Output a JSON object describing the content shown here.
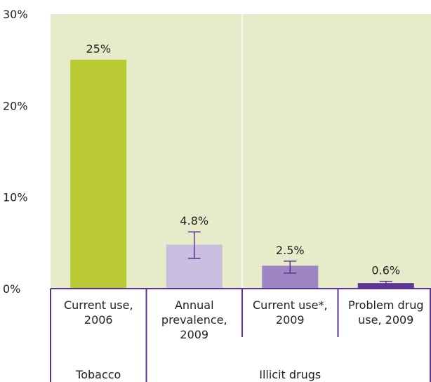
{
  "chart_data": {
    "type": "bar",
    "title": "",
    "xlabel": "",
    "ylabel": "",
    "ylim": [
      0,
      30
    ],
    "yticks": [
      "0%",
      "10%",
      "20%",
      "30%"
    ],
    "ytick_values": [
      0,
      10,
      20,
      30
    ],
    "grid": "vertical separator between groups",
    "categories": [
      [
        "Current use,",
        "2006"
      ],
      [
        "Annual",
        "prevalence,",
        "2009"
      ],
      [
        "Current use*,",
        "2009"
      ],
      [
        "Problem drug",
        "use, 2009"
      ]
    ],
    "values": [
      25,
      4.8,
      2.5,
      0.6
    ],
    "data_labels": [
      "25%",
      "4.8%",
      "2.5%",
      "0.6%"
    ],
    "error_bars": [
      null,
      [
        3.3,
        6.2
      ],
      [
        1.7,
        3.0
      ],
      [
        0.3,
        0.8
      ]
    ],
    "bar_colors": [
      "#b8c934",
      "#c9bde0",
      "#9e86c2",
      "#5c3494"
    ],
    "groups": [
      {
        "label": "Tobacco",
        "span": [
          0,
          0
        ]
      },
      {
        "label": "Illicit drugs",
        "span": [
          1,
          3
        ]
      }
    ],
    "colors": {
      "plot_background": "#e6ecca",
      "axis_line": "#5c3494",
      "error_bar": "#5c3494",
      "separator": "#ffffff"
    }
  }
}
